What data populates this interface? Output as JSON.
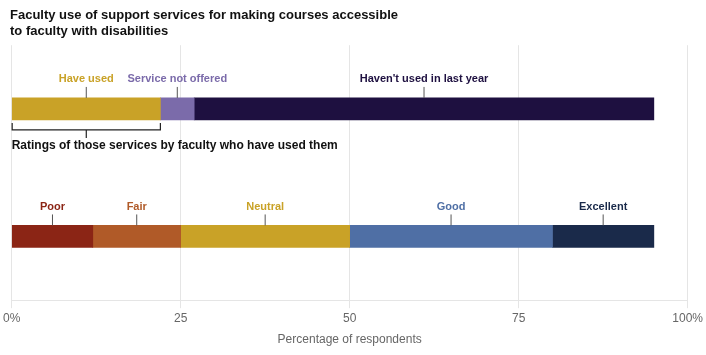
{
  "chart_data": {
    "type": "bar",
    "orientation": "horizontal",
    "stacked": true,
    "title": [
      "Faculty use of support services for making courses accessible",
      "to faculty with disabilities"
    ],
    "subtitle": "Ratings of those services by faculty who have used them",
    "xlabel": "Percentage of respondents",
    "categories": [
      null,
      null
    ],
    "series": [
      {
        "name": "Have used",
        "color": "#C9A227",
        "values": [
          22,
          null
        ]
      },
      {
        "name": "Service not offered",
        "color": "#7B6BAA",
        "values": [
          5,
          null
        ]
      },
      {
        "name": "Haven't used in last year",
        "color": "#1E1040",
        "values": [
          68,
          null
        ]
      },
      {
        "name": "Poor",
        "color": "#8B2515",
        "values": [
          null,
          12
        ]
      },
      {
        "name": "Fair",
        "color": "#B05A28",
        "values": [
          null,
          13
        ]
      },
      {
        "name": "Neutral",
        "color": "#C9A227",
        "values": [
          null,
          25
        ]
      },
      {
        "name": "Good",
        "color": "#4F6FA5",
        "values": [
          null,
          30
        ]
      },
      {
        "name": "Excellent",
        "color": "#1A2A4A",
        "values": [
          null,
          15
        ]
      }
    ],
    "xlim": [
      0,
      100
    ],
    "xticks": [
      {
        "value": 0,
        "label": "0%"
      },
      25,
      50,
      75,
      {
        "value": 100,
        "label": "100%"
      }
    ],
    "grid": true,
    "tick_labels": "x"
  }
}
